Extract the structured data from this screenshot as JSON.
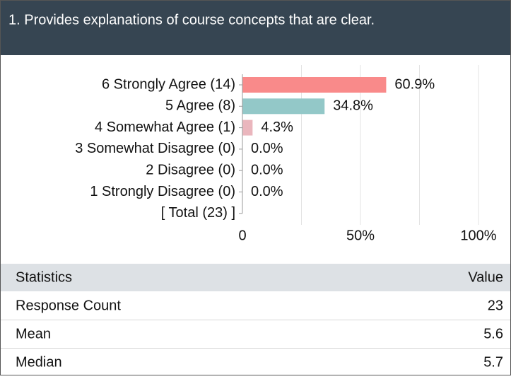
{
  "header": {
    "title": "1. Provides explanations of course concepts that are clear."
  },
  "chart_data": {
    "type": "bar",
    "orientation": "horizontal",
    "categories": [
      "6 Strongly Agree (14)",
      "5 Agree (8)",
      "4 Somewhat Agree (1)",
      "3 Somewhat Disagree (0)",
      "2 Disagree (0)",
      "1 Strongly Disagree (0)"
    ],
    "total_label": "[ Total (23) ]",
    "series": [
      {
        "colors": [
          "#f98a8a",
          "#93c8c8",
          "#eab6bd",
          "#d9d9d9",
          "#d9d9d9",
          "#d9d9d9"
        ],
        "values": [
          60.9,
          34.8,
          4.3,
          0,
          0,
          0
        ],
        "value_labels": [
          "60.9%",
          "34.8%",
          "4.3%",
          "0.0%",
          "0.0%",
          "0.0%"
        ]
      }
    ],
    "xlim": [
      0,
      100
    ],
    "xticks": [
      0,
      {
        "value": 50,
        "label": "50%"
      },
      {
        "value": 100,
        "label": "100%"
      }
    ],
    "minor_grid": [
      25,
      75
    ],
    "grid": true
  },
  "table": {
    "header": [
      "Statistics",
      "Value"
    ],
    "rows": [
      [
        "Response Count",
        "23"
      ],
      [
        "Mean",
        "5.6"
      ],
      [
        "Median",
        "5.7"
      ]
    ]
  }
}
